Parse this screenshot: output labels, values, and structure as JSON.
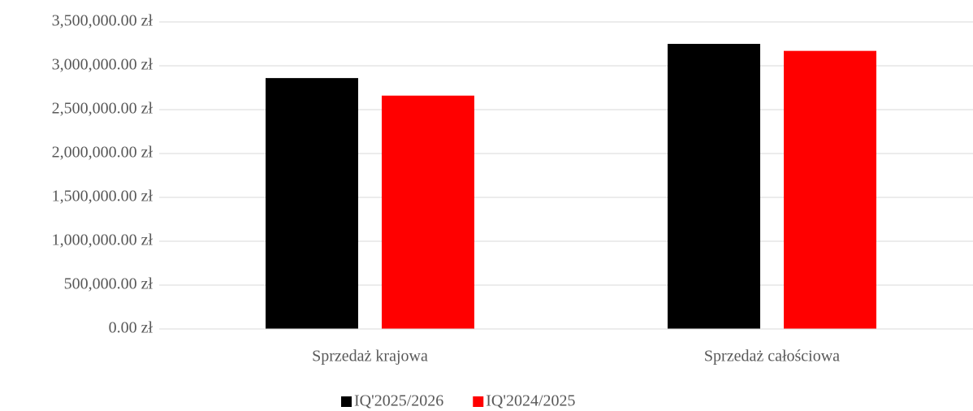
{
  "chart_data": {
    "type": "bar",
    "categories": [
      "Sprzedaż krajowa",
      "Sprzedaż całościowa"
    ],
    "series": [
      {
        "name": "IQ'2025/2026",
        "color": "#000000",
        "values": [
          2860000,
          3250000
        ]
      },
      {
        "name": "IQ'2024/2025",
        "color": "#ff0000",
        "values": [
          2660000,
          3170000
        ]
      }
    ],
    "ylim": [
      0,
      3500000
    ],
    "yticks": [
      {
        "value": 0,
        "label": "0.00 zł"
      },
      {
        "value": 500000,
        "label": "500,000.00 zł"
      },
      {
        "value": 1000000,
        "label": "1,000,000.00 zł"
      },
      {
        "value": 1500000,
        "label": "1,500,000.00 zł"
      },
      {
        "value": 2000000,
        "label": "2,000,000.00 zł"
      },
      {
        "value": 2500000,
        "label": "2,500,000.00 zł"
      },
      {
        "value": 3000000,
        "label": "3,000,000.00 zł"
      },
      {
        "value": 3500000,
        "label": "3,500,000.00 zł"
      }
    ],
    "grid": true,
    "legend": "bottom"
  }
}
